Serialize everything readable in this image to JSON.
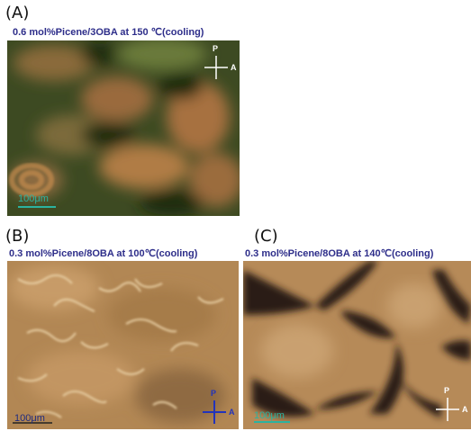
{
  "panels": [
    {
      "label": "(A)",
      "caption": "0.6 mol%Picene/3OBA at 150 ℃(cooling)",
      "scale_bar": "100μm",
      "polarizer": "P",
      "analyzer": "A"
    },
    {
      "label": "(B)",
      "caption": "0.3 mol%Picene/8OBA at 100℃(cooling)",
      "scale_bar": "100μm",
      "polarizer": "P",
      "analyzer": "A"
    },
    {
      "label": "(C)",
      "caption": "0.3 mol%Picene/8OBA at 140℃(cooling)",
      "scale_bar": "100μm",
      "polarizer": "P",
      "analyzer": "A"
    }
  ]
}
